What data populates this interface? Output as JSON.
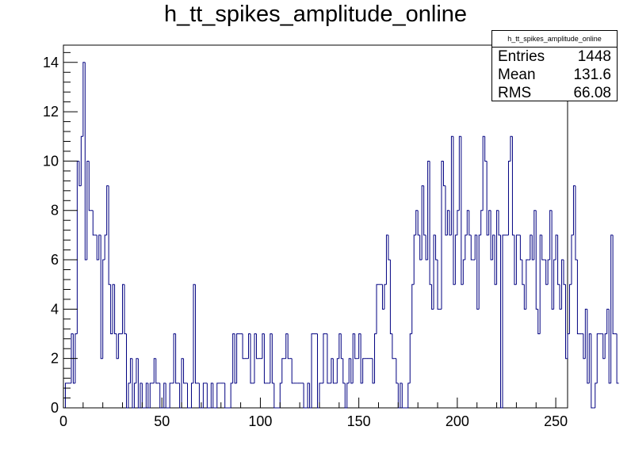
{
  "chart_data": {
    "type": "bar",
    "title": "h_tt_spikes_amplitude_online",
    "xlim": [
      0,
      256
    ],
    "ylim": [
      0,
      14.7
    ],
    "x_ticks": [
      0,
      50,
      100,
      150,
      200,
      250
    ],
    "y_ticks": [
      0,
      2,
      4,
      6,
      8,
      10,
      12,
      14
    ],
    "grid": false,
    "bin_width": 1,
    "values": [
      0,
      1,
      1,
      1,
      3,
      1,
      3,
      10,
      9,
      11,
      14,
      6,
      10,
      8,
      8,
      7,
      7,
      6,
      7,
      2,
      6,
      7,
      9,
      5,
      3,
      5,
      3,
      2,
      3,
      3,
      5,
      3,
      0,
      1,
      2,
      0,
      1,
      2,
      0,
      1,
      0,
      0,
      1,
      0,
      1,
      1,
      2,
      1,
      1,
      0,
      0,
      1,
      0,
      0,
      1,
      1,
      3,
      1,
      1,
      0,
      2,
      1,
      1,
      0,
      0,
      1,
      5,
      1,
      1,
      0,
      0,
      1,
      1,
      0,
      0,
      1,
      0,
      0,
      1,
      1,
      1,
      1,
      0,
      0,
      0,
      1,
      3,
      1,
      3,
      3,
      3,
      2,
      2,
      2,
      3,
      1,
      1,
      3,
      2,
      2,
      2,
      3,
      1,
      1,
      1,
      3,
      1,
      0,
      0,
      0,
      1,
      2,
      2,
      3,
      2,
      2,
      1,
      1,
      1,
      1,
      1,
      1,
      0,
      0,
      1,
      0,
      3,
      3,
      3,
      0,
      1,
      1,
      3,
      3,
      1,
      1,
      2,
      1,
      1,
      2,
      3,
      2,
      1,
      0,
      1,
      2,
      1,
      3,
      2,
      2,
      3,
      1,
      2,
      2,
      2,
      2,
      2,
      1,
      3,
      5,
      5,
      5,
      4,
      5,
      7,
      6,
      3,
      2,
      2,
      1,
      0,
      1,
      0,
      0,
      0,
      1,
      3,
      5,
      7,
      8,
      7,
      6,
      9,
      7,
      6,
      10,
      5,
      4,
      7,
      6,
      4,
      4,
      10,
      9,
      7,
      8,
      7,
      11,
      5,
      7,
      8,
      11,
      5,
      6,
      7,
      8,
      7,
      6,
      6,
      7,
      4,
      7,
      8,
      11,
      10,
      7,
      8,
      6,
      7,
      5,
      8,
      7,
      0,
      7,
      7,
      7,
      10,
      11,
      7,
      5,
      7,
      7,
      6,
      5,
      4,
      6,
      6,
      7,
      6,
      8,
      4,
      3,
      7,
      6,
      6,
      5,
      6,
      8,
      4,
      6,
      7,
      5,
      4,
      6,
      5,
      2,
      3,
      5,
      7,
      9,
      6,
      3,
      3,
      3,
      2,
      4,
      1,
      3,
      0,
      0,
      1,
      3,
      3,
      3,
      2,
      3,
      4,
      1,
      7,
      3,
      3,
      1
    ],
    "stats": {
      "header": "h_tt_spikes_amplitude_online",
      "entries_label": "Entries",
      "entries": "1448",
      "mean_label": "Mean",
      "mean": "131.6",
      "rms_label": "RMS",
      "rms": "66.08"
    },
    "line_color": "#000080",
    "frame_color": "#000000"
  }
}
